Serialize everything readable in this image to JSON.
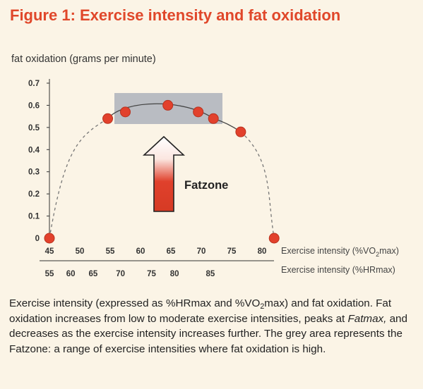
{
  "figure": {
    "title": "Figure 1: Exercise intensity and fat oxidation"
  },
  "caption": {
    "part1": "Exercise intensity (expressed as %HRmax and %VO",
    "sub1": "2",
    "part2": "max) and fat oxidation. Fat oxidation increases from low to moderate exercise intensities, peaks at ",
    "emph": "Fatmax,",
    "part3": " and decreases as the exercise intensity increases further. The grey area represents the Fatzone: a range of exercise intensities where fat oxidation is high."
  },
  "colors": {
    "background": "#fbf4e6",
    "title": "#e0472a",
    "point_fill": "#e2412c",
    "point_stroke": "#b8321f",
    "fatzone_fill": "#b9bcc2",
    "arrow_top": "#ffffff",
    "arrow_bottom": "#e0412c",
    "axis": "#333333"
  },
  "chart_data": {
    "type": "scatter",
    "title": "Figure 1: Exercise intensity and fat oxidation",
    "ylabel": "fat oxidation (grams per minute)",
    "xlabel": "Exercise intensity (%VO",
    "xlabel_sub": "2",
    "xlabel_end": "max)",
    "x2label": "Exercise intensity (%HRmax)",
    "xlim": [
      45,
      80
    ],
    "ylim": [
      0,
      0.7
    ],
    "x_ticks": [
      "45",
      "50",
      "55",
      "60",
      "65",
      "70",
      "75",
      "80"
    ],
    "y_ticks": [
      "0",
      "0.1",
      "0.2",
      "0.3",
      "0.4",
      "0.5",
      "0.6",
      "0.7"
    ],
    "x2_ticks": [
      "55",
      "60",
      "65",
      "70",
      "75",
      "80",
      "85"
    ],
    "x2_tick_positions_vo2": [
      45,
      48.5,
      52.2,
      56.7,
      61.8,
      65.6,
      71.5
    ],
    "points": [
      {
        "x": 45,
        "y": 0.0
      },
      {
        "x": 54.6,
        "y": 0.54
      },
      {
        "x": 57.5,
        "y": 0.57
      },
      {
        "x": 64.5,
        "y": 0.6
      },
      {
        "x": 69.5,
        "y": 0.57
      },
      {
        "x": 72,
        "y": 0.54
      },
      {
        "x": 76.5,
        "y": 0.48
      },
      {
        "x": 82,
        "y": 0.0
      }
    ],
    "curve": "dashed-left, solid-top, dashed-right",
    "fatzone": {
      "label": "Fatzone",
      "x_start": 55.5,
      "x_end": 73.5,
      "y_start": 0.515,
      "y_end": 0.65
    },
    "grid": false,
    "legend": "none"
  }
}
